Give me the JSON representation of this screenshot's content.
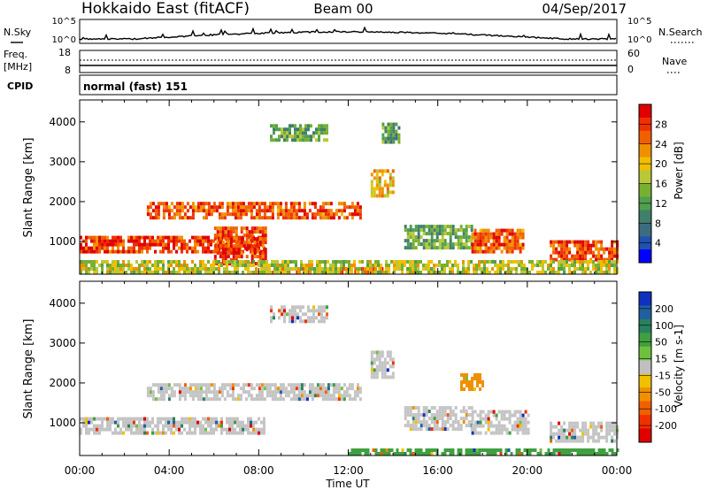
{
  "header": {
    "radar": "Hokkaido East (fitACF)",
    "beam": "Beam 00",
    "date": "04/Sep/2017"
  },
  "noise_panel": {
    "left_label": "N.Sky",
    "right_label": "N.Search",
    "ticks_left": [
      "10^5",
      "10^0"
    ],
    "ticks_right": [
      "10^5",
      "10^0"
    ]
  },
  "freq_panel": {
    "left_label_1": "Freq.",
    "left_label_2": "[MHz]",
    "right_label": "Nave",
    "ticks_left": [
      "18",
      "8"
    ],
    "ticks_right": [
      "60",
      "0"
    ]
  },
  "cpid_panel": {
    "label": "CPID",
    "value": "normal (fast) 151"
  },
  "chart_data": [
    {
      "type": "heatmap",
      "name": "power",
      "ylabel": "Slant Range [km]",
      "yticks": [
        1000,
        2000,
        3000,
        4000
      ],
      "ylim": [
        180,
        4550
      ],
      "xlim": [
        0,
        24
      ],
      "colorbar": {
        "label": "Power [dB]",
        "ticks": [
          "28",
          "24",
          "20",
          "16",
          "12",
          "8",
          "4"
        ],
        "colors": [
          "#e00000",
          "#f03000",
          "#f06000",
          "#f09000",
          "#f0c000",
          "#b8c838",
          "#78b030",
          "#50a050",
          "#40806a",
          "#3c6c80",
          "#2050b0",
          "#0000ff"
        ]
      },
      "regions": [
        {
          "x": [
            0,
            8.2
          ],
          "y": [
            700,
            1100
          ],
          "level": 0.9
        },
        {
          "x": [
            3,
            12.5
          ],
          "y": [
            1550,
            1950
          ],
          "level": 0.85
        },
        {
          "x": [
            6,
            8.3
          ],
          "y": [
            400,
            1300
          ],
          "level": 0.9
        },
        {
          "x": [
            8,
            13.5
          ],
          "y": [
            180,
            300
          ],
          "level": 0.8
        },
        {
          "x": [
            8.5,
            11
          ],
          "y": [
            3500,
            3900
          ],
          "level": 0.4
        },
        {
          "x": [
            13,
            14
          ],
          "y": [
            2100,
            2800
          ],
          "level": 0.65
        },
        {
          "x": [
            13.5,
            14.3
          ],
          "y": [
            3450,
            3900
          ],
          "level": 0.35
        },
        {
          "x": [
            14.5,
            17.5
          ],
          "y": [
            800,
            1400
          ],
          "level": 0.4
        },
        {
          "x": [
            17.5,
            19.8
          ],
          "y": [
            700,
            1300
          ],
          "level": 0.85
        },
        {
          "x": [
            21,
            24
          ],
          "y": [
            500,
            1000
          ],
          "level": 0.9
        },
        {
          "x": [
            0,
            24
          ],
          "y": [
            180,
            500
          ],
          "level": 0.55
        }
      ]
    },
    {
      "type": "heatmap",
      "name": "velocity",
      "ylabel": "Slant Range [km]",
      "xlabel": "Time UT",
      "xticks": [
        "00:00",
        "04:00",
        "08:00",
        "12:00",
        "16:00",
        "20:00",
        "00:00"
      ],
      "yticks": [
        1000,
        2000,
        3000,
        4000
      ],
      "ylim": [
        180,
        4550
      ],
      "xlim": [
        0,
        24
      ],
      "colorbar": {
        "label": "Velocity [m s-1]",
        "ticks": [
          "200",
          "100",
          "50",
          "15",
          "-15",
          "-50",
          "-100",
          "-200"
        ],
        "colors": [
          "#1030c0",
          "#2060a0",
          "#2a8060",
          "#40a040",
          "#70c040",
          "#c0c0c0",
          "#f0c000",
          "#f09000",
          "#f06000",
          "#f03000",
          "#e00000"
        ]
      },
      "regions": [
        {
          "x": [
            0,
            8.2
          ],
          "y": [
            700,
            1100
          ],
          "level": 0.5
        },
        {
          "x": [
            3,
            12.5
          ],
          "y": [
            1550,
            1950
          ],
          "level": 0.5
        },
        {
          "x": [
            8.5,
            11
          ],
          "y": [
            3500,
            3900
          ],
          "level": 0.5
        },
        {
          "x": [
            13,
            14
          ],
          "y": [
            2100,
            2800
          ],
          "level": 0.5
        },
        {
          "x": [
            14.5,
            17.5
          ],
          "y": [
            800,
            1400
          ],
          "level": 0.55
        },
        {
          "x": [
            17,
            18
          ],
          "y": [
            1800,
            2200
          ],
          "level": 0.3
        },
        {
          "x": [
            17.5,
            20
          ],
          "y": [
            700,
            1300
          ],
          "level": 0.5
        },
        {
          "x": [
            21,
            24
          ],
          "y": [
            500,
            1000
          ],
          "level": 0.5
        },
        {
          "x": [
            12,
            24
          ],
          "y": [
            180,
            350
          ],
          "level": 0.75
        }
      ]
    }
  ]
}
